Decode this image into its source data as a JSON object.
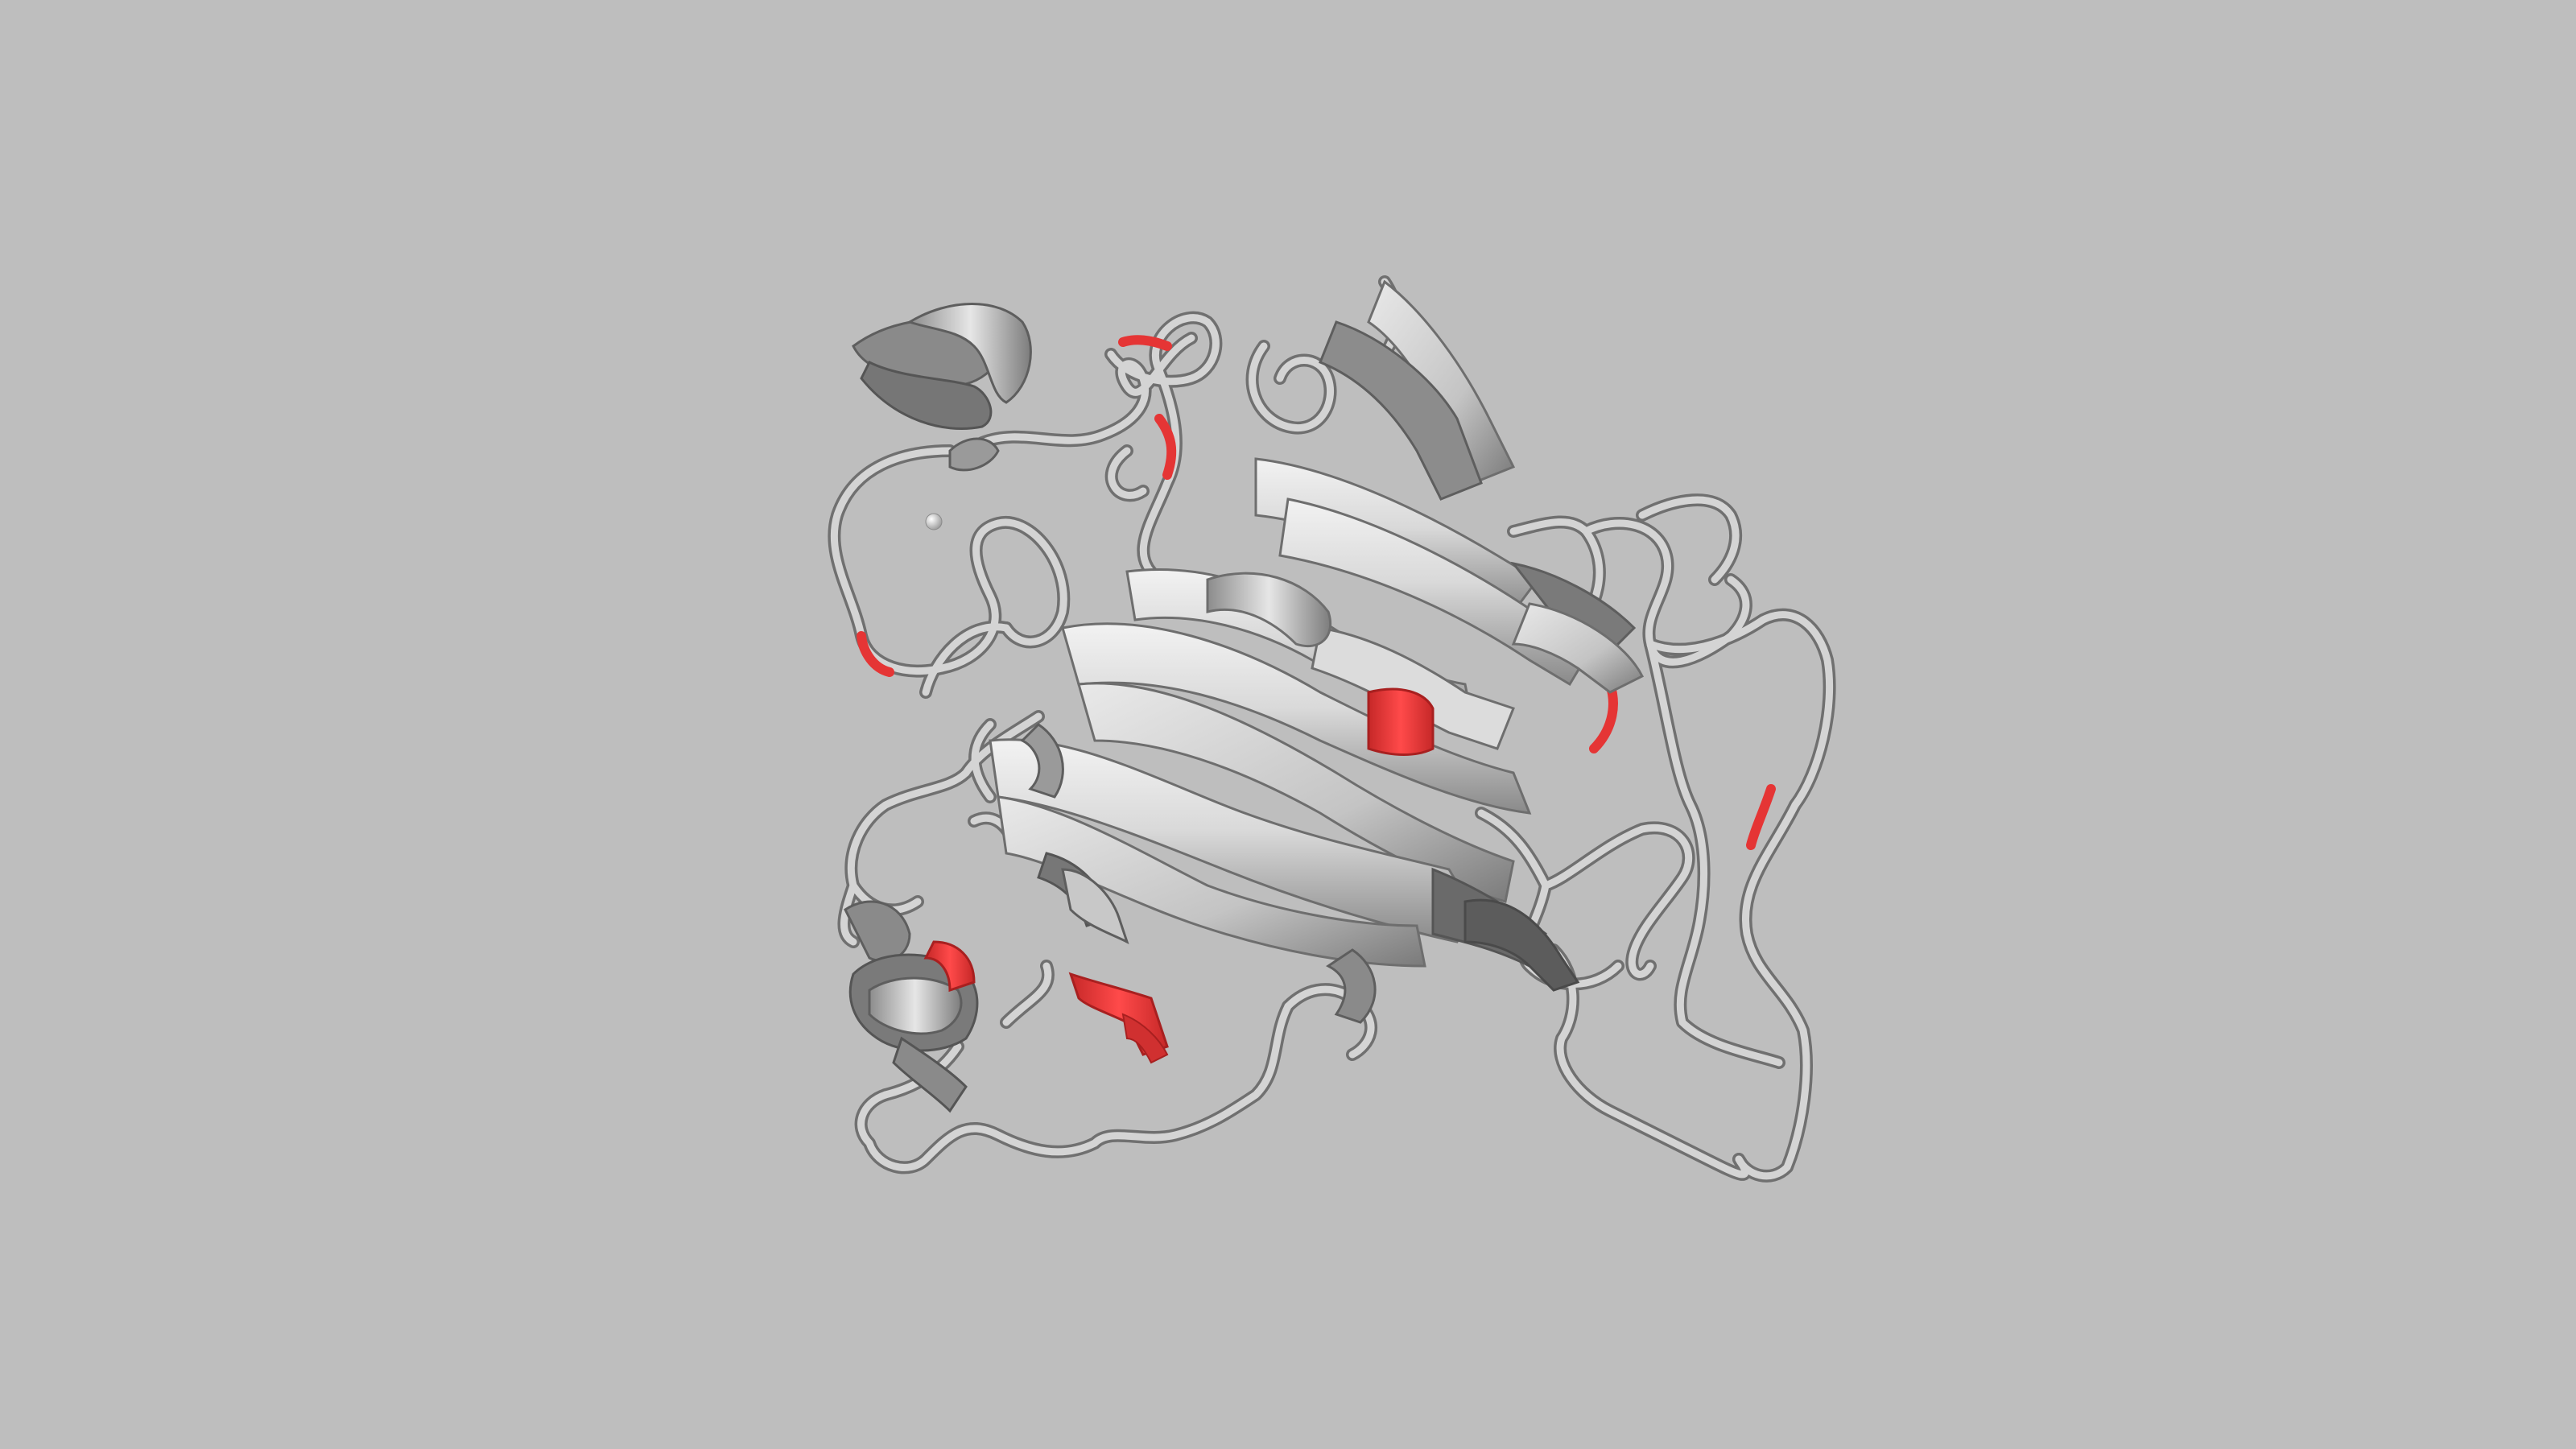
{
  "scene": {
    "subject": "protein-ribbon-structure",
    "representation": "cartoon",
    "colors": {
      "background": "#bebebe",
      "ribbon_light": "#ebebeb",
      "ribbon_mid": "#c8c8c8",
      "ribbon_dark": "#7d7d7d",
      "coil_outline": "#6e6e6e",
      "highlight": "#ef3b3b",
      "highlight_dark": "#b52323"
    }
  }
}
